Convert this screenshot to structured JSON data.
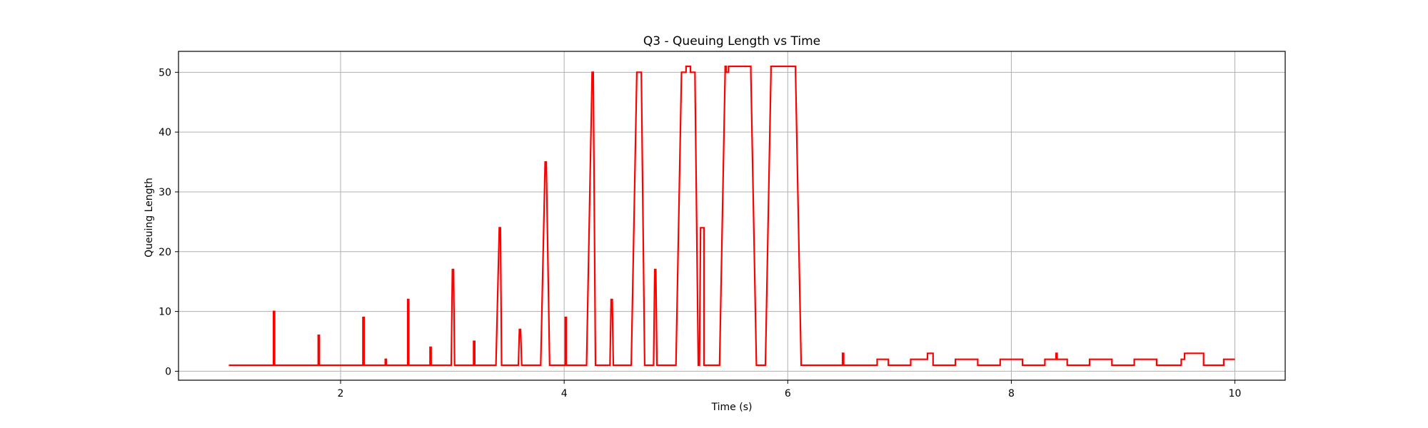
{
  "chart_data": {
    "type": "line",
    "title": "Q3 - Queuing Length vs Time",
    "xlabel": "Time (s)",
    "ylabel": "Queuing Length",
    "xlim": [
      0.55,
      10.45
    ],
    "ylim": [
      -1.5,
      53.5
    ],
    "xticks": [
      2,
      4,
      6,
      8,
      10
    ],
    "yticks": [
      0,
      10,
      20,
      30,
      40,
      50
    ],
    "grid": true,
    "legend": "none",
    "series": [
      {
        "color": "#ff0000",
        "x": [
          1.0,
          1.4,
          1.4,
          1.41,
          1.41,
          1.8,
          1.8,
          1.81,
          1.81,
          2.2,
          2.2,
          2.21,
          2.21,
          2.4,
          2.4,
          2.41,
          2.41,
          2.6,
          2.6,
          2.61,
          2.61,
          2.8,
          2.8,
          2.81,
          2.81,
          2.99,
          3.0,
          3.01,
          3.02,
          3.19,
          3.19,
          3.2,
          3.2,
          3.39,
          3.42,
          3.43,
          3.44,
          3.59,
          3.6,
          3.61,
          3.62,
          3.79,
          3.83,
          3.84,
          3.87,
          4.01,
          4.01,
          4.02,
          4.02,
          4.2,
          4.25,
          4.26,
          4.28,
          4.41,
          4.42,
          4.43,
          4.44,
          4.6,
          4.65,
          4.69,
          4.72,
          4.8,
          4.81,
          4.82,
          4.83,
          5.0,
          5.05,
          5.09,
          5.09,
          5.13,
          5.13,
          5.17,
          5.2,
          5.21,
          5.22,
          5.25,
          5.25,
          5.39,
          5.44,
          5.44,
          5.45,
          5.45,
          5.47,
          5.47,
          5.67,
          5.67,
          5.72,
          5.8,
          5.85,
          5.85,
          6.07,
          6.07,
          6.12,
          6.49,
          6.49,
          6.5,
          6.5,
          6.8,
          6.8,
          6.9,
          6.9,
          7.1,
          7.1,
          7.25,
          7.25,
          7.3,
          7.3,
          7.5,
          7.5,
          7.7,
          7.7,
          7.9,
          7.9,
          8.1,
          8.1,
          8.3,
          8.3,
          8.4,
          8.4,
          8.41,
          8.41,
          8.5,
          8.5,
          8.7,
          8.7,
          8.9,
          8.9,
          9.1,
          9.1,
          9.3,
          9.3,
          9.52,
          9.52,
          9.55,
          9.55,
          9.72,
          9.72,
          9.9,
          9.9,
          10.0
        ],
        "y": [
          1,
          1,
          10,
          10,
          1,
          1,
          6,
          6,
          1,
          1,
          9,
          9,
          1,
          1,
          2,
          2,
          1,
          1,
          12,
          12,
          1,
          1,
          4,
          4,
          1,
          1,
          17,
          17,
          1,
          1,
          5,
          5,
          1,
          1,
          24,
          24,
          1,
          1,
          7,
          7,
          1,
          1,
          35,
          35,
          1,
          1,
          9,
          9,
          1,
          1,
          50,
          50,
          1,
          1,
          12,
          12,
          1,
          1,
          50,
          50,
          1,
          1,
          17,
          17,
          1,
          1,
          50,
          50,
          51,
          51,
          50,
          50,
          1,
          1,
          24,
          24,
          1,
          1,
          50,
          51,
          51,
          50,
          50,
          51,
          51,
          50,
          1,
          1,
          50,
          51,
          51,
          50,
          1,
          1,
          3,
          3,
          1,
          1,
          2,
          2,
          1,
          1,
          2,
          2,
          3,
          3,
          1,
          1,
          2,
          2,
          1,
          1,
          2,
          2,
          1,
          1,
          2,
          2,
          3,
          3,
          2,
          2,
          1,
          1,
          2,
          2,
          1,
          1,
          2,
          2,
          1,
          1,
          2,
          2,
          3,
          3,
          1,
          1,
          2,
          2
        ]
      }
    ]
  }
}
